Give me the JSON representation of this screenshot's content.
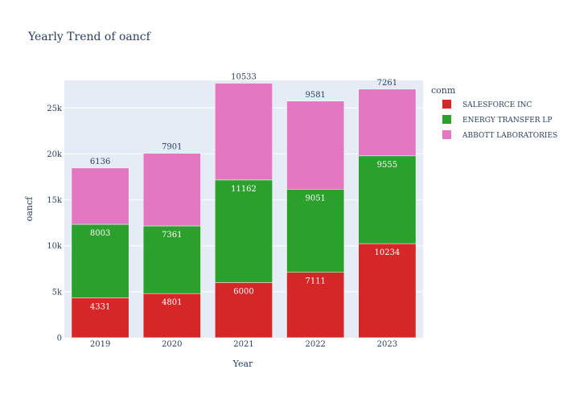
{
  "chart_data": {
    "type": "bar",
    "stacked": true,
    "title": "Yearly Trend of oancf",
    "xlabel": "Year",
    "ylabel": "oancf",
    "categories": [
      "2019",
      "2020",
      "2021",
      "2022",
      "2023"
    ],
    "ylim": [
      0,
      28000
    ],
    "yticks": [
      0,
      5000,
      10000,
      15000,
      20000,
      25000
    ],
    "ytick_labels": [
      "0",
      "5k",
      "10k",
      "15k",
      "20k",
      "25k"
    ],
    "grid": true,
    "legend": {
      "title": "conm",
      "placement": "right"
    },
    "series": [
      {
        "name": "SALESFORCE INC",
        "color": "#d62728",
        "values": [
          4331,
          4801,
          6000,
          7111,
          10234
        ]
      },
      {
        "name": "ENERGY TRANSFER LP",
        "color": "#2ca02c",
        "values": [
          8003,
          7361,
          11162,
          9051,
          9555
        ]
      },
      {
        "name": "ABBOTT LABORATORIES",
        "color": "#e377c2",
        "values": [
          6136,
          7901,
          10533,
          9581,
          7261
        ]
      }
    ],
    "plot_background": "#e5ecf6"
  }
}
